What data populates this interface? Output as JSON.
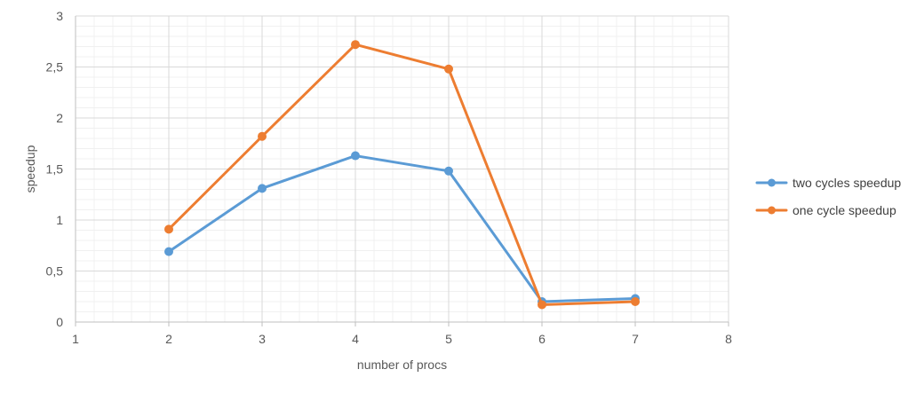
{
  "chart_data": {
    "type": "line",
    "title": "",
    "xlabel": "number of procs",
    "ylabel": "speedup",
    "xlim": [
      1,
      8
    ],
    "ylim": [
      0,
      3
    ],
    "x_ticks": [
      1,
      2,
      3,
      4,
      5,
      6,
      7,
      8
    ],
    "x_tick_labels": [
      "1",
      "2",
      "3",
      "4",
      "5",
      "6",
      "7",
      "8"
    ],
    "y_ticks": [
      0,
      0.5,
      1,
      1.5,
      2,
      2.5,
      3
    ],
    "y_tick_labels": [
      "0",
      "0,5",
      "1",
      "1,5",
      "2",
      "2,5",
      "3"
    ],
    "grid": true,
    "minor_grid": true,
    "legend_position": "right",
    "series": [
      {
        "name": "two cycles speedup",
        "color": "#5b9bd5",
        "x": [
          2,
          3,
          4,
          5,
          6,
          7
        ],
        "y": [
          0.69,
          1.31,
          1.63,
          1.48,
          0.2,
          0.23
        ]
      },
      {
        "name": "one cycle speedup",
        "color": "#ed7d31",
        "x": [
          2,
          3,
          4,
          5,
          6,
          7
        ],
        "y": [
          0.91,
          1.82,
          2.72,
          2.48,
          0.17,
          0.2
        ]
      }
    ]
  }
}
